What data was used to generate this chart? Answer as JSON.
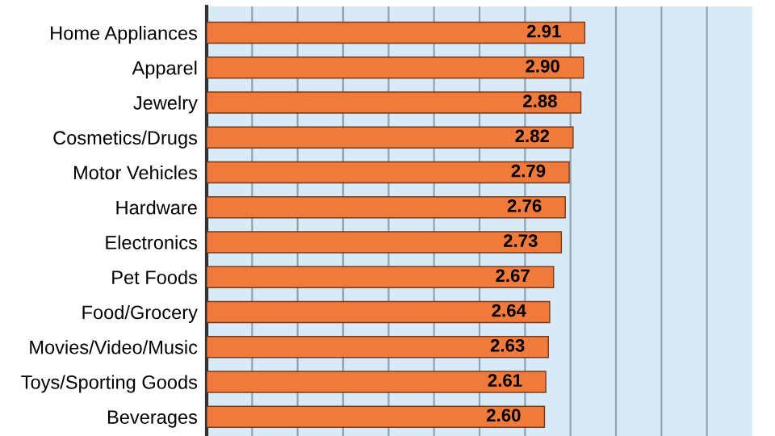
{
  "chart_data": {
    "type": "bar",
    "orientation": "horizontal",
    "categories": [
      "Home Appliances",
      "Apparel",
      "Jewelry",
      "Cosmetics/Drugs",
      "Motor Vehicles",
      "Hardware",
      "Electronics",
      "Pet Foods",
      "Food/Grocery",
      "Movies/Video/Music",
      "Toys/Sporting Goods",
      "Beverages"
    ],
    "values": [
      2.91,
      2.9,
      2.88,
      2.82,
      2.79,
      2.76,
      2.73,
      2.67,
      2.64,
      2.63,
      2.61,
      2.6
    ],
    "color": "#f07a3c",
    "xlim": [
      0,
      4.2
    ],
    "xticks": [
      {
        "value": 0.35,
        "label": null
      },
      {
        "value": 0.7,
        "label": null
      },
      {
        "value": 1.05,
        "label": null
      },
      {
        "value": 1.4,
        "label": null
      },
      {
        "value": 1.75,
        "label": null
      },
      {
        "value": 2.1,
        "label": null
      },
      {
        "value": 2.45,
        "label": null
      },
      {
        "value": 2.8,
        "label": null
      },
      {
        "value": 3.15,
        "label": null
      },
      {
        "value": 3.5,
        "label": null
      },
      {
        "value": 3.85,
        "label": null
      }
    ],
    "value_labels": [
      "2.91",
      "2.90",
      "2.88",
      "2.82",
      "2.79",
      "2.76",
      "2.73",
      "2.67",
      "2.64",
      "2.63",
      "2.61",
      "2.60"
    ],
    "grid": "x",
    "tick_labels": "y"
  }
}
